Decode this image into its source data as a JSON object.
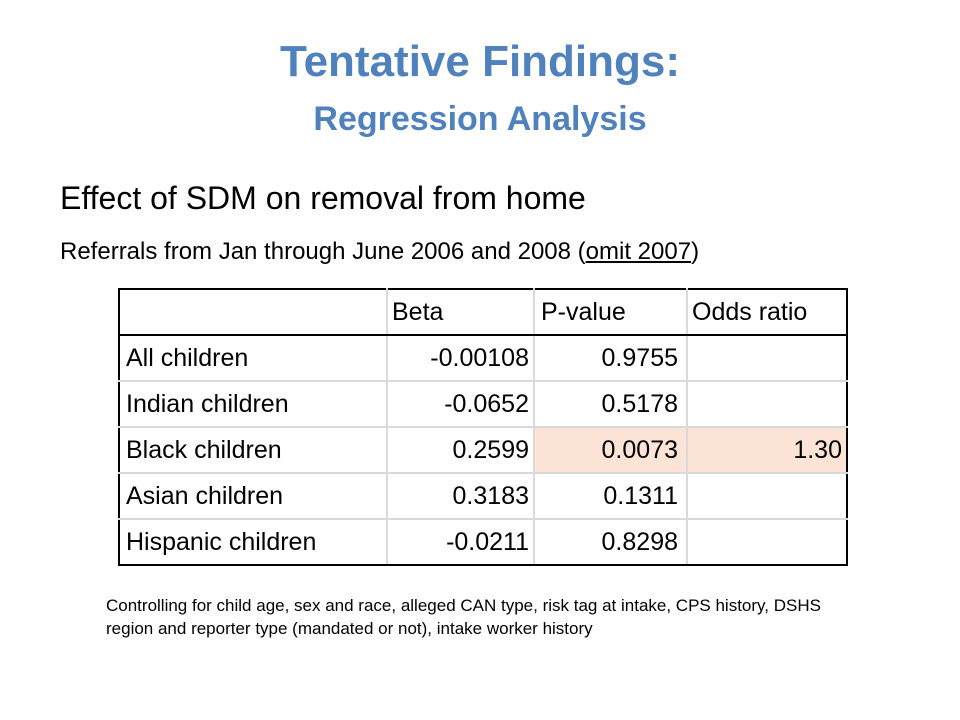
{
  "slide": {
    "title": "Tentative Findings:",
    "subtitle": "Regression Analysis",
    "heading": "Effect of SDM on removal from home",
    "subheading_prefix": "Referrals from Jan through June 2006 and 2008 (",
    "subheading_underlined": "omit 2007",
    "subheading_suffix": ")"
  },
  "table": {
    "headers": [
      "",
      "Beta",
      "P-value",
      "Odds ratio"
    ],
    "rows": [
      {
        "label": "All children",
        "beta": "-0.00108",
        "pvalue": "0.9755",
        "odds": ""
      },
      {
        "label": "Indian children",
        "beta": "-0.0652",
        "pvalue": "0.5178",
        "odds": ""
      },
      {
        "label": "Black children",
        "beta": "0.2599",
        "pvalue": "0.0073",
        "odds": "1.30"
      },
      {
        "label": "Asian children",
        "beta": "0.3183",
        "pvalue": "0.1311",
        "odds": ""
      },
      {
        "label": "Hispanic children",
        "beta": "-0.0211",
        "pvalue": "0.8298",
        "odds": ""
      }
    ],
    "highlight_color": "#fbe4d5"
  },
  "note": "Controlling for child age, sex and race, alleged CAN type, risk tag at intake, CPS history, DSHS region and reporter type (mandated or not), intake worker history",
  "colors": {
    "title": "#4f81bd"
  }
}
